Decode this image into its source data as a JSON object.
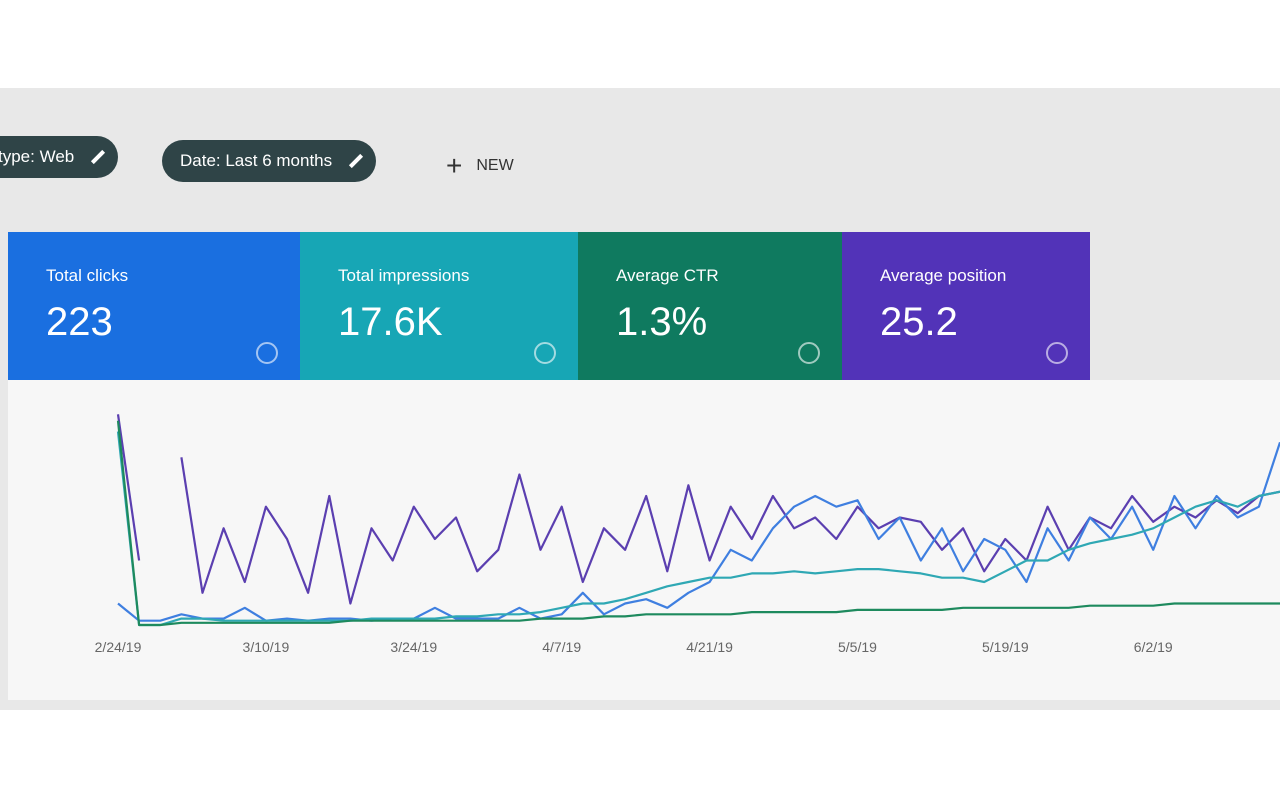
{
  "filters": {
    "chips": [
      "type: Web",
      "Date: Last 6 months"
    ],
    "new_button": "NEW"
  },
  "cards": [
    {
      "label": "Total clicks",
      "value": "223"
    },
    {
      "label": "Total impressions",
      "value": "17.6K"
    },
    {
      "label": "Average CTR",
      "value": "1.3%"
    },
    {
      "label": "Average position",
      "value": "25.2"
    }
  ],
  "chart_data": {
    "type": "line",
    "xlim": [
      0,
      55
    ],
    "ylim": [
      0,
      100
    ],
    "xticks": [
      {
        "value": 0,
        "label": "2/24/19"
      },
      {
        "value": 7,
        "label": "3/10/19"
      },
      {
        "value": 14,
        "label": "3/24/19"
      },
      {
        "value": 21,
        "label": "4/7/19"
      },
      {
        "value": 28,
        "label": "4/21/19"
      },
      {
        "value": 35,
        "label": "5/5/19"
      },
      {
        "value": 42,
        "label": "5/19/19"
      },
      {
        "value": 49,
        "label": "6/2/19"
      }
    ],
    "series": [
      {
        "color": "#5b3fb0",
        "values": [
          98,
          30,
          null,
          78,
          15,
          45,
          20,
          55,
          40,
          15,
          60,
          10,
          45,
          30,
          55,
          40,
          50,
          25,
          35,
          70,
          35,
          55,
          20,
          45,
          35,
          60,
          25,
          65,
          30,
          55,
          40,
          60,
          45,
          50,
          40,
          55,
          45,
          50,
          48,
          35,
          45,
          25,
          40,
          30,
          55,
          35,
          50,
          45,
          60,
          48,
          55,
          50,
          58,
          52,
          60,
          62
        ]
      },
      {
        "color": "#3f7fe0",
        "values": [
          10,
          2,
          2,
          5,
          3,
          3,
          8,
          2,
          3,
          2,
          3,
          3,
          2,
          3,
          3,
          8,
          3,
          3,
          3,
          8,
          3,
          5,
          15,
          5,
          10,
          12,
          8,
          15,
          20,
          35,
          30,
          45,
          55,
          60,
          55,
          58,
          40,
          50,
          30,
          45,
          25,
          40,
          35,
          20,
          45,
          30,
          50,
          40,
          55,
          35,
          60,
          45,
          60,
          50,
          55,
          85
        ]
      },
      {
        "color": "#2fa8b4",
        "values": [
          90,
          0,
          0,
          3,
          3,
          2,
          2,
          2,
          2,
          2,
          2,
          2,
          3,
          3,
          3,
          3,
          4,
          4,
          5,
          5,
          6,
          8,
          10,
          10,
          12,
          15,
          18,
          20,
          22,
          22,
          24,
          24,
          25,
          24,
          25,
          26,
          26,
          25,
          24,
          22,
          22,
          20,
          25,
          30,
          30,
          35,
          38,
          40,
          42,
          45,
          50,
          55,
          58,
          55,
          60,
          62
        ]
      },
      {
        "color": "#1e8a5e",
        "values": [
          95,
          0,
          0,
          1,
          1,
          1,
          1,
          1,
          1,
          1,
          1,
          2,
          2,
          2,
          2,
          2,
          2,
          2,
          2,
          2,
          3,
          3,
          3,
          4,
          4,
          5,
          5,
          5,
          5,
          5,
          6,
          6,
          6,
          6,
          6,
          7,
          7,
          7,
          7,
          7,
          8,
          8,
          8,
          8,
          8,
          8,
          9,
          9,
          9,
          9,
          10,
          10,
          10,
          10,
          10,
          10
        ]
      }
    ]
  }
}
